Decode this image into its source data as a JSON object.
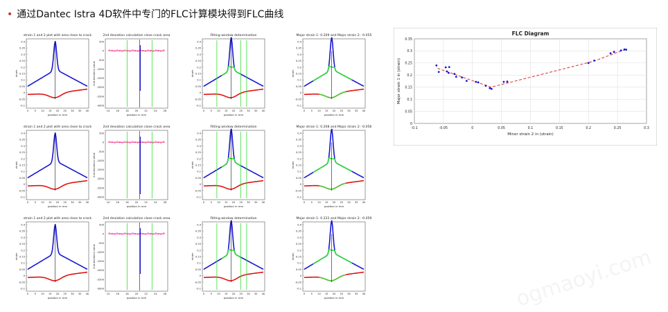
{
  "heading": {
    "bullet": "•",
    "text": "通过Dantec Istra 4D软件中专门的FLC计算模块得到FLC曲线"
  },
  "watermark": "ogmaoyi.com",
  "panel_titles": [
    [
      "strain 1 and 2 plot with area close to crack",
      "2nd deviation calculation close crack area",
      "Fitting window determination",
      "Major strain 1: 0.209 and Major strain 2: -0.055"
    ],
    [
      "strain 1 and 2 plot with area close to crack",
      "2nd deviation calculation close crack area",
      "Fitting window determination",
      "Major strain 1: 0.208 and Major strain 2: -0.056"
    ],
    [
      "strain 1 and 2 plot with area close to crack",
      "2nd deviation calculation close crack area",
      "Fitting window determination",
      "Major strain 1: 0.222 and Major strain 2: -0.059"
    ]
  ],
  "panel_labels": {
    "xlabel": "position in mm",
    "ylabel_strain": "strain",
    "ylabel_deriv": "2nd deviation value"
  },
  "strain_ticks": [
    "0.4",
    "0.35",
    "0.3",
    "0.25",
    "0.2",
    "0.15",
    "0.1",
    "0.05",
    "0",
    "-0.05",
    "-0.1"
  ],
  "strain_xticks": [
    "0",
    "5",
    "10",
    "15",
    "20",
    "25",
    "30",
    "35",
    "40"
  ],
  "deriv_ticks": [
    "500",
    "0",
    "-500",
    "-1000",
    "-1500",
    "-2000",
    "-2500",
    "-3000"
  ],
  "deriv_xticks": [
    "14",
    "16",
    "18",
    "20",
    "22",
    "24",
    "26"
  ],
  "colors": {
    "major": "#1616d0",
    "minor": "#e01010",
    "fit": "#33dd33",
    "marker": "#ff00ff",
    "fitline": "#d63030"
  },
  "chart_data": {
    "type": "scatter",
    "title": "FLC Diagram",
    "xlabel": "Minor strain 2 in (strain)",
    "ylabel": "Major strain 1 in (strain)",
    "xlim": [
      -0.1,
      0.3
    ],
    "ylim": [
      0,
      0.35
    ],
    "xticks": [
      "-0.1",
      "-0.05",
      "0",
      "0.05",
      "0.1",
      "0.15",
      "0.2",
      "0.25",
      "0.3"
    ],
    "yticks": [
      "0",
      "0.05",
      "0.1",
      "0.15",
      "0.2",
      "0.25",
      "0.3",
      "0.35"
    ],
    "grid": true,
    "points": [
      [
        -0.062,
        0.24
      ],
      [
        -0.058,
        0.213
      ],
      [
        -0.046,
        0.232
      ],
      [
        -0.044,
        0.215
      ],
      [
        -0.041,
        0.209
      ],
      [
        -0.04,
        0.233
      ],
      [
        -0.031,
        0.205
      ],
      [
        -0.028,
        0.193
      ],
      [
        -0.018,
        0.19
      ],
      [
        -0.01,
        0.176
      ],
      [
        0.006,
        0.172
      ],
      [
        0.01,
        0.17
      ],
      [
        0.023,
        0.156
      ],
      [
        0.03,
        0.146
      ],
      [
        0.033,
        0.143
      ],
      [
        0.054,
        0.172
      ],
      [
        0.06,
        0.173
      ],
      [
        0.2,
        0.25
      ],
      [
        0.21,
        0.26
      ],
      [
        0.238,
        0.29
      ],
      [
        0.244,
        0.296
      ],
      [
        0.256,
        0.302
      ],
      [
        0.262,
        0.306
      ],
      [
        0.265,
        0.305
      ]
    ],
    "fit_line": [
      [
        -0.06,
        0.228
      ],
      [
        0.032,
        0.15
      ],
      [
        0.21,
        0.258
      ],
      [
        0.262,
        0.305
      ]
    ]
  }
}
